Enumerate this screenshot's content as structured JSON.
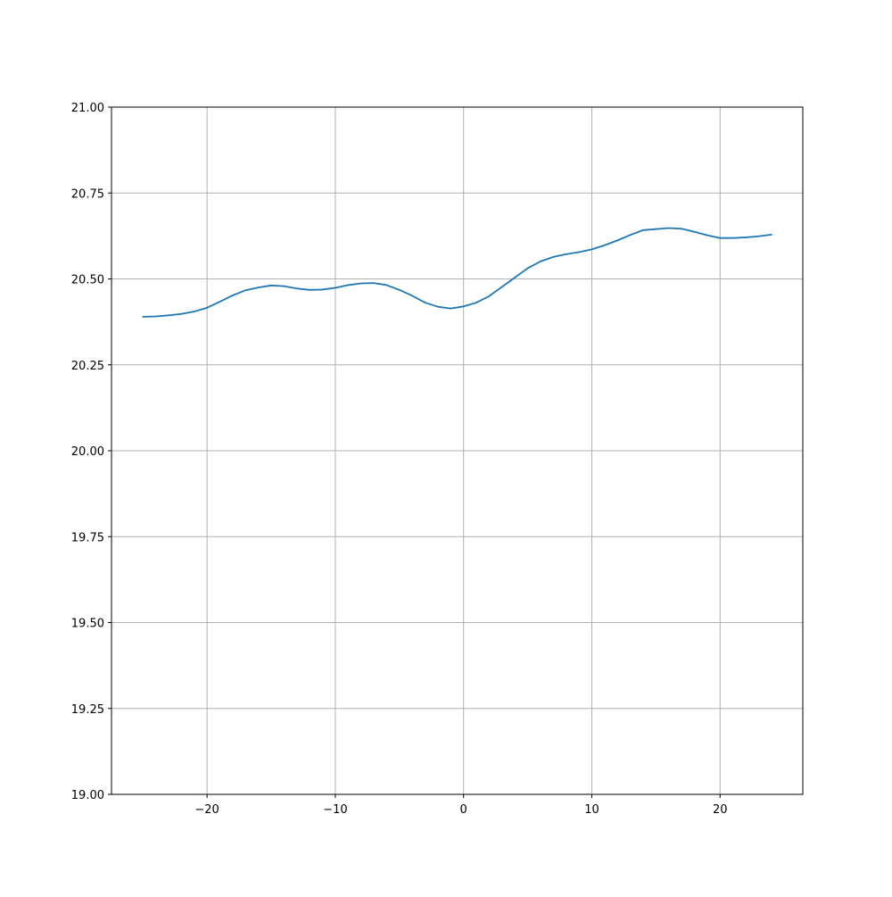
{
  "chart_data": {
    "type": "line",
    "title": "",
    "xlabel": "",
    "ylabel": "",
    "xlim": [
      -27.45,
      26.45
    ],
    "ylim": [
      19.0,
      21.0
    ],
    "grid": true,
    "x_ticks": [
      -20,
      -10,
      0,
      10,
      20
    ],
    "x_tick_labels": [
      "−20",
      "−10",
      "0",
      "10",
      "20"
    ],
    "y_ticks": [
      19.0,
      19.25,
      19.5,
      19.75,
      20.0,
      20.25,
      20.5,
      20.75,
      21.0
    ],
    "y_tick_labels": [
      "19.00",
      "19.25",
      "19.50",
      "19.75",
      "20.00",
      "20.25",
      "20.50",
      "20.75",
      "21.00"
    ],
    "series": [
      {
        "color": "#1f77b4",
        "x": [
          -25,
          -24,
          -23,
          -22,
          -21,
          -20,
          -19,
          -18,
          -17,
          -16,
          -15,
          -14,
          -13,
          -12,
          -11,
          -10,
          -9,
          -8,
          -7,
          -6,
          -5,
          -4,
          -3,
          -2,
          -1,
          0,
          1,
          2,
          3,
          4,
          5,
          6,
          7,
          8,
          9,
          10,
          11,
          12,
          13,
          14,
          15,
          16,
          17,
          18,
          19,
          20,
          21,
          22,
          23,
          24
        ],
        "y": [
          20.39,
          20.391,
          20.394,
          20.398,
          20.405,
          20.416,
          20.434,
          20.452,
          20.467,
          20.475,
          20.481,
          20.479,
          20.472,
          20.468,
          20.469,
          20.474,
          20.482,
          20.487,
          20.488,
          20.482,
          20.468,
          20.451,
          20.431,
          20.419,
          20.414,
          20.42,
          20.431,
          20.45,
          20.477,
          20.504,
          20.531,
          20.551,
          20.564,
          20.572,
          20.578,
          20.586,
          20.598,
          20.612,
          20.628,
          20.642,
          20.645,
          20.648,
          20.646,
          20.637,
          20.627,
          20.619,
          20.619,
          20.621,
          20.624,
          20.629
        ]
      }
    ]
  }
}
